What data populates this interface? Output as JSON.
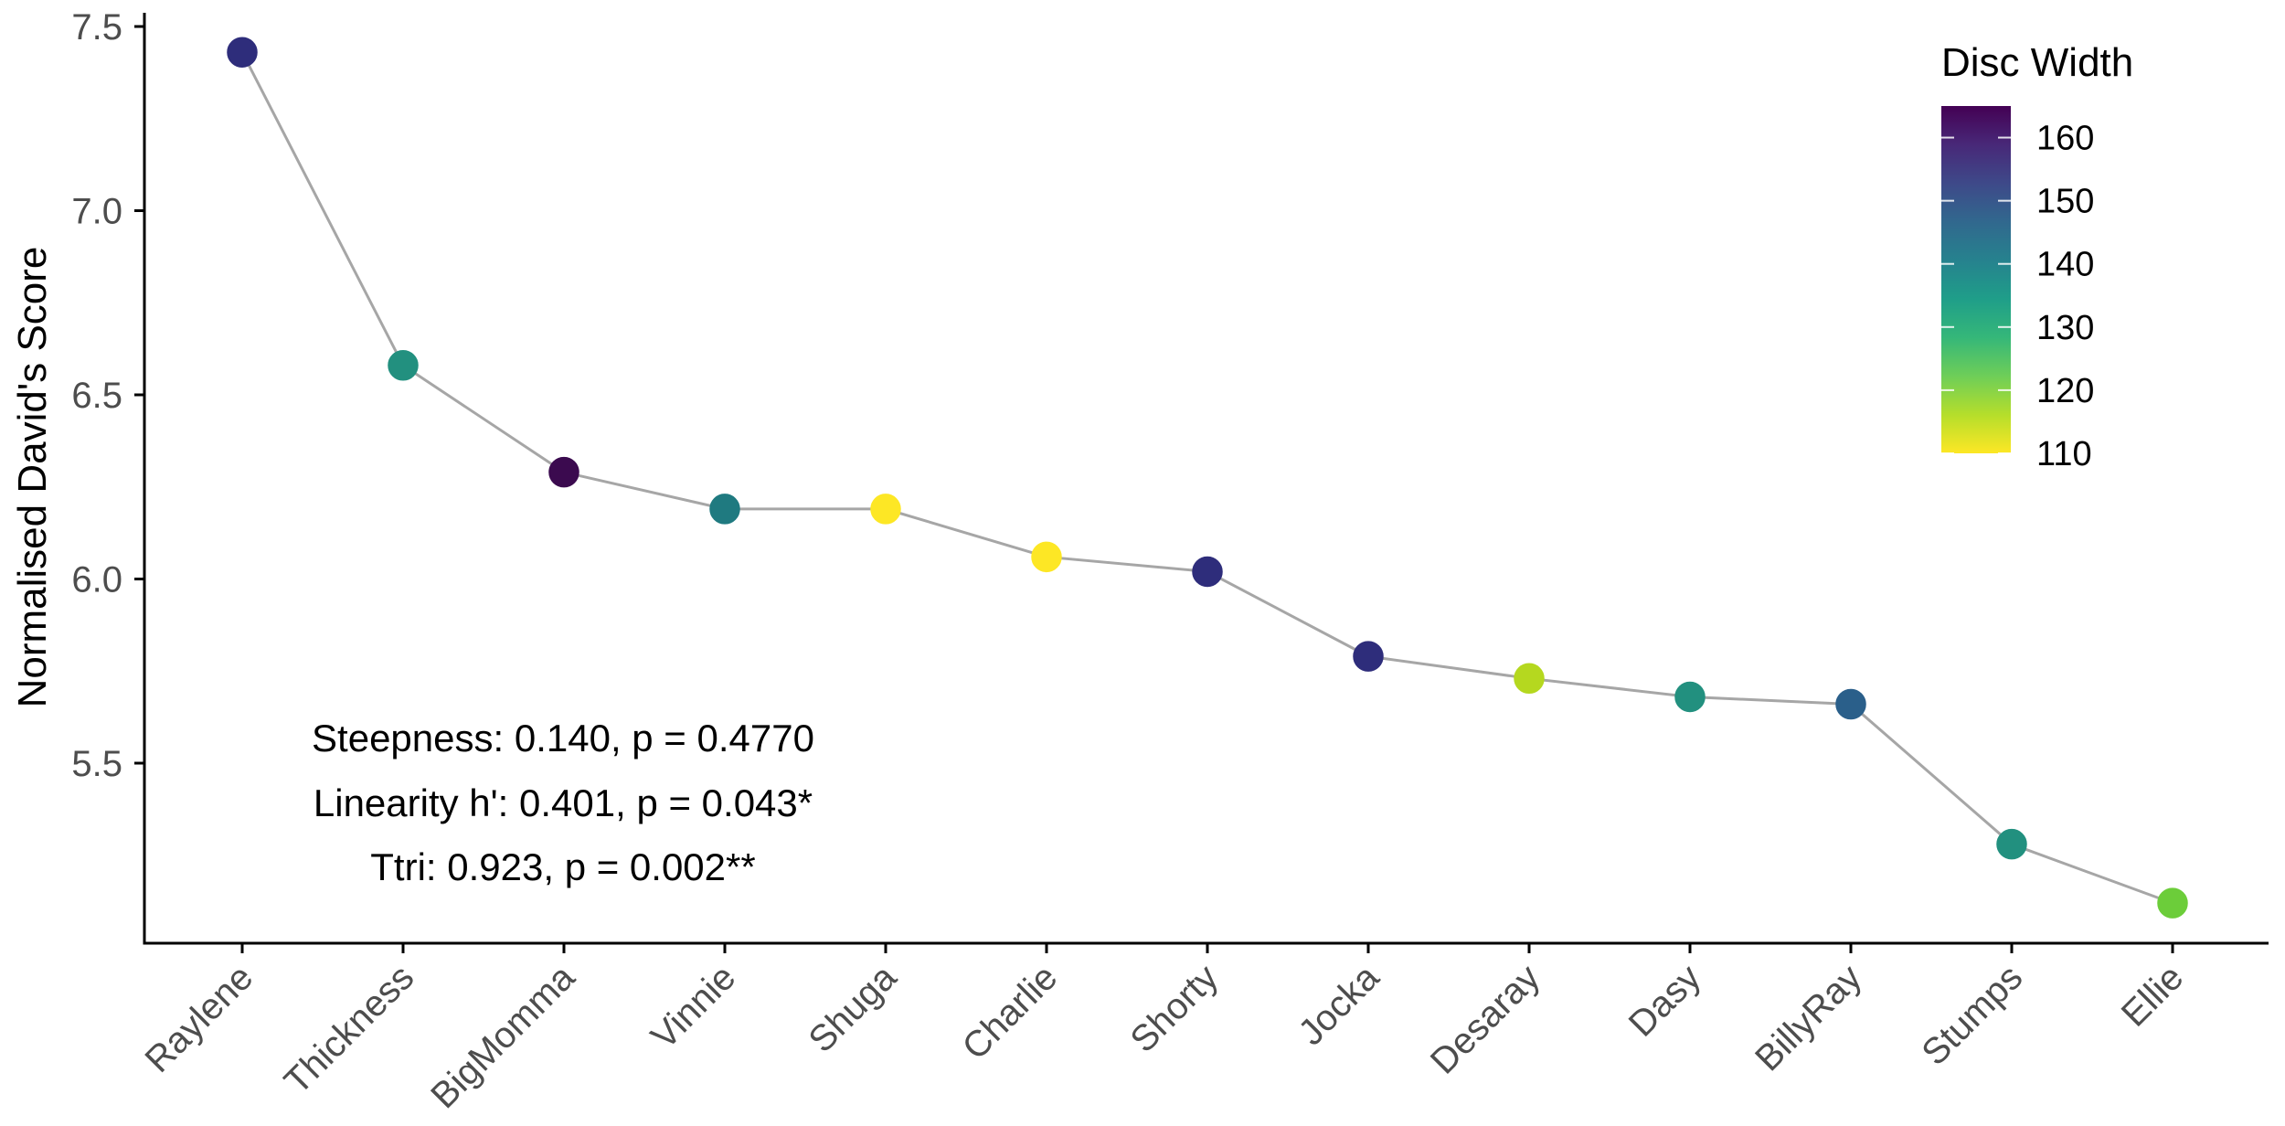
{
  "chart_data": {
    "type": "line",
    "title": "",
    "xlabel": "",
    "ylabel": "Normalised David's Score",
    "ylim": [
      5.0,
      7.55
    ],
    "yticks": [
      5.5,
      6.0,
      6.5,
      7.0,
      7.5
    ],
    "ytick_labels": [
      "5.5",
      "6.0",
      "6.5",
      "7.0",
      "7.5"
    ],
    "grid": false,
    "categories": [
      "Raylene",
      "Thickness",
      "BigMomma",
      "Vinnie",
      "Shuga",
      "Charlie",
      "Shorty",
      "Jocka",
      "Desaray",
      "Dasy",
      "BillyRay",
      "Stumps",
      "Ellie"
    ],
    "series": [
      {
        "name": "Normalised David's Score",
        "values": [
          7.43,
          6.58,
          6.29,
          6.19,
          6.19,
          6.06,
          6.02,
          5.79,
          5.73,
          5.68,
          5.66,
          5.28,
          5.12
        ],
        "line_color": "#a6a6a6",
        "marker": "circle"
      }
    ],
    "color_variable": {
      "name": "Disc Width",
      "values": [
        155,
        133,
        165,
        140,
        110,
        110,
        155,
        155,
        116,
        133,
        146,
        133,
        122
      ],
      "point_colors": [
        "#2e2d7b",
        "#22907f",
        "#3b0a4f",
        "#1f7a80",
        "#fde725",
        "#fde725",
        "#2e2d7b",
        "#2e2d7b",
        "#b5d81f",
        "#22907f",
        "#2a5f8a",
        "#22907f",
        "#6ccd3a"
      ]
    },
    "legend": {
      "title": "Disc Width",
      "type": "colorbar",
      "position": "top-right",
      "ticks": [
        160,
        150,
        140,
        130,
        120,
        110
      ],
      "tick_labels": [
        "160",
        "150",
        "140",
        "130",
        "120",
        "110"
      ],
      "range": [
        110,
        165
      ],
      "palette": "viridis (reversed)",
      "gradient": [
        "#fde725",
        "#b5de2b",
        "#6ece58",
        "#35b779",
        "#1f9e89",
        "#26828e",
        "#31688e",
        "#3e4989",
        "#482878",
        "#440154"
      ]
    },
    "annotations": [
      "Steepness: 0.140, p = 0.4770",
      "Linearity h': 0.401, p = 0.043*",
      "Ttri: 0.923, p = 0.002**"
    ]
  }
}
